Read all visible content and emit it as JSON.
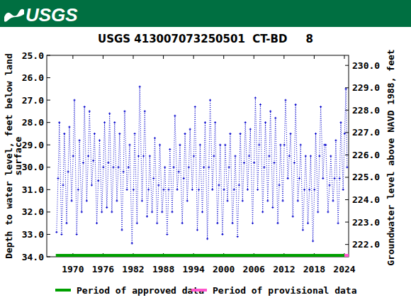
{
  "chart_data": {
    "type": "line",
    "logo": "USGS",
    "title": "USGS 413007073250501  CT-BD     8",
    "ylabel": [
      "Depth to water level, feet below land",
      "surface"
    ],
    "y2label": "Groundwater level above NAVD 1988, feet",
    "xlim": [
      1964.8,
      2024.85
    ],
    "xticks": [
      1970,
      1976,
      1982,
      1988,
      1994,
      2000,
      2006,
      2012,
      2018,
      2024
    ],
    "ylim": [
      34,
      25
    ],
    "yticks": [
      {
        "value": 25,
        "label": "25.0"
      },
      {
        "value": 26,
        "label": "26.0"
      },
      {
        "value": 27,
        "label": "27.0"
      },
      {
        "value": 28,
        "label": "28.0"
      },
      {
        "value": 29,
        "label": "29.0"
      },
      {
        "value": 30,
        "label": "30.0"
      },
      {
        "value": 31,
        "label": "31.0"
      },
      {
        "value": 32,
        "label": "32.0"
      },
      {
        "value": 33,
        "label": "33.0"
      },
      {
        "value": 34,
        "label": "34.0"
      }
    ],
    "y2lim": [
      221.45,
      230.45
    ],
    "y2ticks": [
      {
        "value": 222,
        "label": "222.0"
      },
      {
        "value": 223,
        "label": "223.0"
      },
      {
        "value": 224,
        "label": "224.0"
      },
      {
        "value": 225,
        "label": "225.0"
      },
      {
        "value": 226,
        "label": "226.0"
      },
      {
        "value": 227,
        "label": "227.0"
      },
      {
        "value": 228,
        "label": "228.0"
      },
      {
        "value": 229,
        "label": "229.0"
      },
      {
        "value": 230,
        "label": "230.0"
      }
    ],
    "grid": false,
    "legend": "bottom",
    "series": [
      {
        "color": "#0000cc",
        "marker": "plus",
        "line_style": "dotted",
        "x": [
          1966.75,
          1967.05,
          1967.3,
          1967.75,
          1968.05,
          1968.3,
          1968.75,
          1969.05,
          1969.3,
          1969.75,
          1970.05,
          1970.3,
          1970.75,
          1971.05,
          1971.3,
          1971.75,
          1972.05,
          1972.3,
          1972.75,
          1973.05,
          1973.3,
          1973.75,
          1974.05,
          1974.3,
          1974.75,
          1975.05,
          1975.3,
          1975.75,
          1976.05,
          1976.3,
          1976.75,
          1977.05,
          1977.3,
          1977.75,
          1978.05,
          1978.3,
          1978.75,
          1979.05,
          1979.3,
          1979.75,
          1980.05,
          1980.3,
          1980.75,
          1981.05,
          1981.3,
          1981.75,
          1982.05,
          1982.3,
          1982.75,
          1983.05,
          1983.3,
          1983.75,
          1984.05,
          1984.3,
          1984.75,
          1985.05,
          1985.3,
          1985.75,
          1986.05,
          1986.3,
          1986.75,
          1987.05,
          1987.3,
          1987.75,
          1988.05,
          1988.3,
          1988.75,
          1989.05,
          1989.3,
          1989.75,
          1990.05,
          1990.3,
          1990.75,
          1991.05,
          1991.3,
          1991.75,
          1992.05,
          1992.3,
          1992.75,
          1993.05,
          1993.3,
          1993.75,
          1994.05,
          1994.3,
          1994.75,
          1995.05,
          1995.3,
          1995.75,
          1996.05,
          1996.3,
          1996.75,
          1997.05,
          1997.3,
          1997.75,
          1998.05,
          1998.3,
          1998.75,
          1999.05,
          1999.3,
          1999.75,
          2000.05,
          2000.3,
          2000.75,
          2001.05,
          2001.3,
          2001.75,
          2002.05,
          2002.3,
          2002.75,
          2003.05,
          2003.3,
          2003.75,
          2004.05,
          2004.3,
          2004.75,
          2005.05,
          2005.3,
          2005.75,
          2006.05,
          2006.3,
          2006.75,
          2007.05,
          2007.3,
          2007.75,
          2008.05,
          2008.3,
          2008.75,
          2009.05,
          2009.3,
          2009.75,
          2010.05,
          2010.3,
          2010.75,
          2011.05,
          2011.3,
          2011.75,
          2012.05,
          2012.3,
          2012.75,
          2013.05,
          2013.3,
          2013.75,
          2014.05,
          2014.3,
          2014.75,
          2015.05,
          2015.3,
          2015.75,
          2016.05,
          2016.3,
          2016.75,
          2017.05,
          2017.3,
          2017.75,
          2018.05,
          2018.3,
          2018.75,
          2019.05,
          2019.3,
          2019.75,
          2020.05,
          2020.3,
          2020.75,
          2021.05,
          2021.3,
          2021.75,
          2022.05,
          2022.3,
          2022.75,
          2023.05,
          2023.3,
          2023.75,
          2024.05,
          2024.3,
          2024.55
        ],
        "values": [
          32.9,
          30.5,
          28.0,
          33.0,
          30.8,
          28.5,
          32.5,
          30.2,
          28.2,
          31.5,
          29.5,
          27.0,
          33.0,
          31.0,
          28.8,
          32.0,
          29.8,
          27.3,
          31.5,
          29.5,
          27.5,
          30.8,
          29.7,
          28.5,
          32.5,
          30.6,
          28.8,
          32.0,
          30.0,
          28.0,
          31.8,
          29.8,
          27.6,
          32.0,
          30.0,
          28.0,
          31.5,
          30.0,
          28.5,
          32.8,
          30.2,
          27.5,
          31.0,
          30.0,
          29.0,
          33.4,
          31.0,
          28.5,
          32.5,
          29.5,
          26.4,
          31.5,
          29.5,
          27.5,
          32.2,
          31.0,
          29.5,
          32.0,
          30.5,
          28.7,
          32.5,
          30.8,
          29.0,
          32.0,
          31.0,
          30.0,
          33.0,
          31.0,
          29.2,
          32.0,
          30.0,
          27.7,
          31.0,
          30.2,
          29.0,
          32.5,
          30.5,
          28.5,
          31.5,
          30.0,
          28.3,
          31.0,
          29.5,
          27.3,
          32.8,
          31.0,
          29.0,
          32.0,
          30.0,
          28.0,
          33.2,
          30.0,
          27.0,
          31.0,
          29.5,
          28.0,
          32.5,
          30.8,
          29.0,
          33.0,
          31.0,
          29.0,
          31.5,
          30.0,
          28.5,
          32.5,
          31.0,
          29.5,
          33.1,
          30.8,
          28.5,
          31.5,
          29.8,
          28.0,
          31.0,
          29.5,
          28.3,
          32.5,
          29.8,
          26.9,
          31.0,
          29.0,
          27.2,
          32.0,
          30.0,
          28.0,
          31.5,
          29.5,
          27.5,
          31.8,
          29.8,
          27.8,
          32.5,
          30.8,
          29.0,
          31.5,
          29.0,
          27.0,
          30.5,
          29.5,
          28.5,
          32.2,
          29.8,
          27.2,
          31.5,
          30.5,
          29.0,
          32.8,
          31.0,
          29.5,
          32.5,
          31.0,
          29.5,
          33.3,
          31.0,
          28.5,
          32.0,
          29.5,
          27.3,
          30.5,
          29.0,
          29.0,
          32.0,
          30.8,
          29.5,
          31.5,
          30.5,
          28.8,
          32.5,
          30.5,
          28.0,
          31.0,
          28.5,
          26.5,
          30.0
        ]
      }
    ],
    "periods": [
      {
        "name": "Period of approved data",
        "color": "#00a000",
        "start": 1966.6,
        "end": 2024.0
      },
      {
        "name": "Period of provisional data",
        "color": "#ff55cc",
        "start": 2024.0,
        "end": 2024.85
      }
    ]
  }
}
